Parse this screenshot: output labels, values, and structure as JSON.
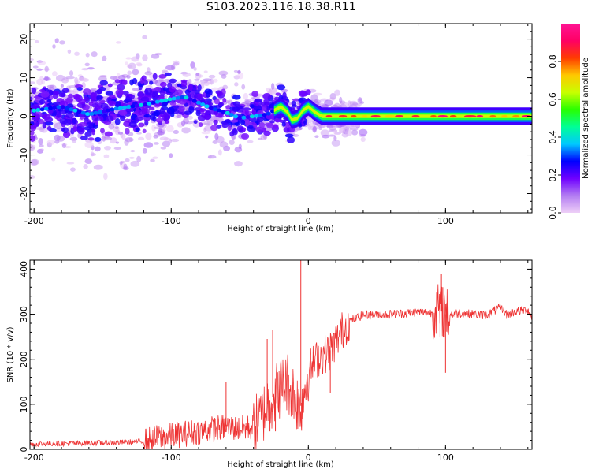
{
  "title": "S103.2023.116.18.38.R11",
  "chart_data": [
    {
      "type": "heatmap",
      "xlabel": "Height of straight line (km)",
      "ylabel": "Frequency (Hz)",
      "xlim": [
        -203,
        163
      ],
      "ylim": [
        -25,
        24
      ],
      "x_ticks": [
        "-200",
        "-100",
        "0",
        "100"
      ],
      "y_ticks": [
        "20",
        "10",
        "0",
        "-10",
        "-20"
      ],
      "colorbar": {
        "label": "Normalized spectral amplitude",
        "range": [
          0,
          1
        ],
        "ticks": [
          "0.0",
          "0.2",
          "0.4",
          "0.6",
          "0.8"
        ],
        "colors": [
          "#eecff7",
          "#b37df2",
          "#6f00ff",
          "#0000ff",
          "#00c8ff",
          "#00ff96",
          "#28ff00",
          "#c8ff00",
          "#ffc800",
          "#ff3c00",
          "#ff0064",
          "#ff1493"
        ]
      },
      "ridge": [
        {
          "x": -200,
          "f": 1.5
        },
        {
          "x": -180,
          "f": 2.5
        },
        {
          "x": -160,
          "f": 0.5
        },
        {
          "x": -140,
          "f": 2
        },
        {
          "x": -120,
          "f": 3
        },
        {
          "x": -100,
          "f": 4.5
        },
        {
          "x": -90,
          "f": 5
        },
        {
          "x": -80,
          "f": 3.5
        },
        {
          "x": -70,
          "f": 2
        },
        {
          "x": -60,
          "f": 1
        },
        {
          "x": -50,
          "f": -0.5
        },
        {
          "x": -40,
          "f": 0
        },
        {
          "x": -30,
          "f": 0.5
        },
        {
          "x": -25,
          "f": 1.5
        },
        {
          "x": -20,
          "f": 2.5
        },
        {
          "x": -15,
          "f": 1
        },
        {
          "x": -12,
          "f": -1
        },
        {
          "x": -8,
          "f": -0.5
        },
        {
          "x": -4,
          "f": 1.5
        },
        {
          "x": 0,
          "f": 2.5
        },
        {
          "x": 5,
          "f": 1
        },
        {
          "x": 10,
          "f": 0
        },
        {
          "x": 163,
          "f": 0
        }
      ]
    },
    {
      "type": "line",
      "xlabel": "Height of straight line (km)",
      "ylabel": "SNR (10 * v/v)",
      "xlim": [
        -203,
        163
      ],
      "ylim": [
        0,
        420
      ],
      "x_ticks": [
        "-200",
        "-100",
        "0",
        "100"
      ],
      "y_ticks": [
        "400",
        "300",
        "200",
        "100",
        "0"
      ],
      "line_color": "#ee3333",
      "series": [
        {
          "points": [
            {
              "x": -203,
              "y": 12
            },
            {
              "x": -180,
              "y": 13
            },
            {
              "x": -160,
              "y": 14
            },
            {
              "x": -140,
              "y": 15
            },
            {
              "x": -120,
              "y": 18
            },
            {
              "x": -110,
              "y": 25
            },
            {
              "x": -100,
              "y": 30
            },
            {
              "x": -90,
              "y": 35
            },
            {
              "x": -80,
              "y": 40
            },
            {
              "x": -70,
              "y": 45
            },
            {
              "x": -60,
              "y": 50
            },
            {
              "x": -50,
              "y": 45
            },
            {
              "x": -40,
              "y": 50
            },
            {
              "x": -35,
              "y": 65
            },
            {
              "x": -30,
              "y": 100
            },
            {
              "x": -25,
              "y": 120
            },
            {
              "x": -20,
              "y": 140
            },
            {
              "x": -15,
              "y": 150
            },
            {
              "x": -10,
              "y": 120
            },
            {
              "x": -6,
              "y": 90
            },
            {
              "x": -3,
              "y": 130
            },
            {
              "x": 0,
              "y": 175
            },
            {
              "x": 5,
              "y": 195
            },
            {
              "x": 10,
              "y": 210
            },
            {
              "x": 15,
              "y": 215
            },
            {
              "x": 20,
              "y": 240
            },
            {
              "x": 25,
              "y": 265
            },
            {
              "x": 30,
              "y": 285
            },
            {
              "x": 40,
              "y": 298
            },
            {
              "x": 50,
              "y": 300
            },
            {
              "x": 60,
              "y": 300
            },
            {
              "x": 70,
              "y": 302
            },
            {
              "x": 80,
              "y": 305
            },
            {
              "x": 90,
              "y": 303
            },
            {
              "x": 95,
              "y": 310
            },
            {
              "x": 100,
              "y": 300
            },
            {
              "x": 105,
              "y": 300
            },
            {
              "x": 110,
              "y": 302
            },
            {
              "x": 120,
              "y": 300
            },
            {
              "x": 130,
              "y": 298
            },
            {
              "x": 140,
              "y": 315
            },
            {
              "x": 145,
              "y": 298
            },
            {
              "x": 150,
              "y": 305
            },
            {
              "x": 160,
              "y": 310
            },
            {
              "x": 163,
              "y": 290
            }
          ]
        }
      ],
      "spikes": [
        {
          "x": -5.5,
          "y": 420
        },
        {
          "x": -5,
          "y": 50
        },
        {
          "x": -30,
          "y": 245
        },
        {
          "x": -28,
          "y": 40
        },
        {
          "x": -26,
          "y": 265
        },
        {
          "x": -24,
          "y": 40
        },
        {
          "x": -60,
          "y": 150
        },
        {
          "x": 97,
          "y": 390
        },
        {
          "x": 100,
          "y": 170
        },
        {
          "x": 98,
          "y": 360
        },
        {
          "x": 96,
          "y": 250
        },
        {
          "x": 16,
          "y": 125
        }
      ]
    }
  ]
}
